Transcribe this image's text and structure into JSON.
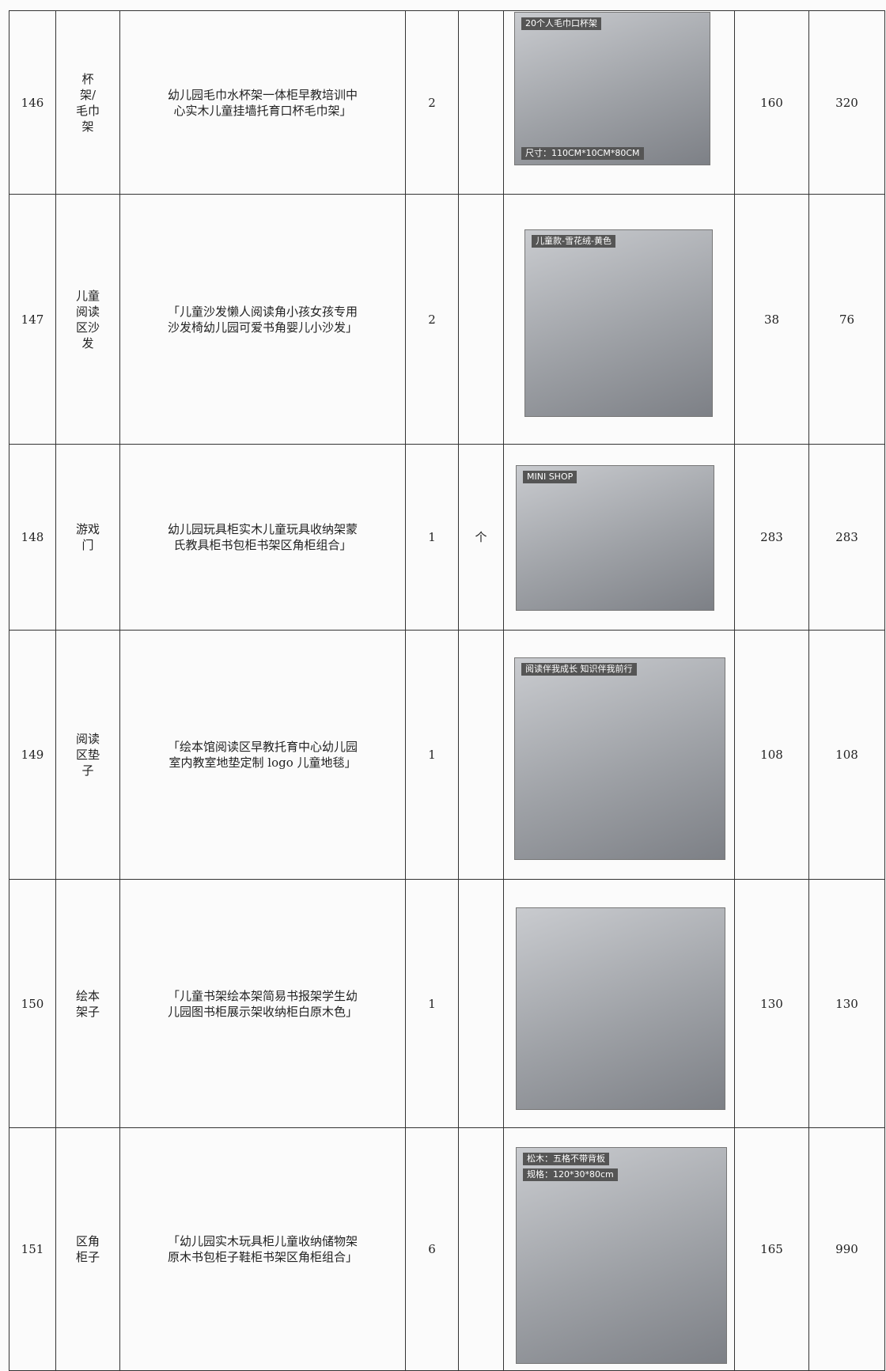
{
  "table": {
    "rows": [
      {
        "no": "146",
        "name": "杯架/毛巾架",
        "desc": "幼儿园毛巾水杯架一体柜早教培训中心实木儿童挂墙托育口杯毛巾架」",
        "qty": 2,
        "image_text": [
          "20个人毛巾口杯架",
          "尺寸：110CM*10CM*80CM"
        ],
        "price": 160,
        "total": 320
      },
      {
        "no": "147",
        "name": "儿童阅读区沙发",
        "desc": "「儿童沙发懒人阅读角小孩女孩专用沙发椅幼儿园可爱书角婴儿小沙发」",
        "qty": 2,
        "image_text": [
          "儿童款-雪花绒-黄色"
        ],
        "price": 38,
        "total": 76
      },
      {
        "no": "148",
        "name": "游戏门",
        "desc": "幼儿园玩具柜实木儿童玩具收纳架蒙氏教具柜书包柜书架区角柜组合」",
        "qty": 1,
        "unit": "个",
        "image_text": [
          "MINI SHOP"
        ],
        "price": 283,
        "total": 283
      },
      {
        "no": "149",
        "name": "阅读区垫子",
        "desc": "「绘本馆阅读区早教托育中心幼儿园室内教室地垫定制 logo 儿童地毯」",
        "qty": 1,
        "image_text": [
          "阅读伴我成长 知识伴我前行"
        ],
        "price": 108,
        "total": 108
      },
      {
        "no": "150",
        "name": "绘本架子",
        "desc": "「儿童书架绘本架简易书报架学生幼儿园图书柜展示架收纳柜白原木色」",
        "qty": 1,
        "image_text": [],
        "price": 130,
        "total": 130
      },
      {
        "no": "151",
        "name": "区角柜子",
        "desc": "「幼儿园实木玩具柜儿童收纳储物架原木书包柜子鞋柜书架区角柜组合」",
        "qty": 6,
        "image_text": [
          "松木：五格不带背板",
          "规格：120*30*80cm"
        ],
        "price": 165,
        "total": 990
      }
    ]
  }
}
